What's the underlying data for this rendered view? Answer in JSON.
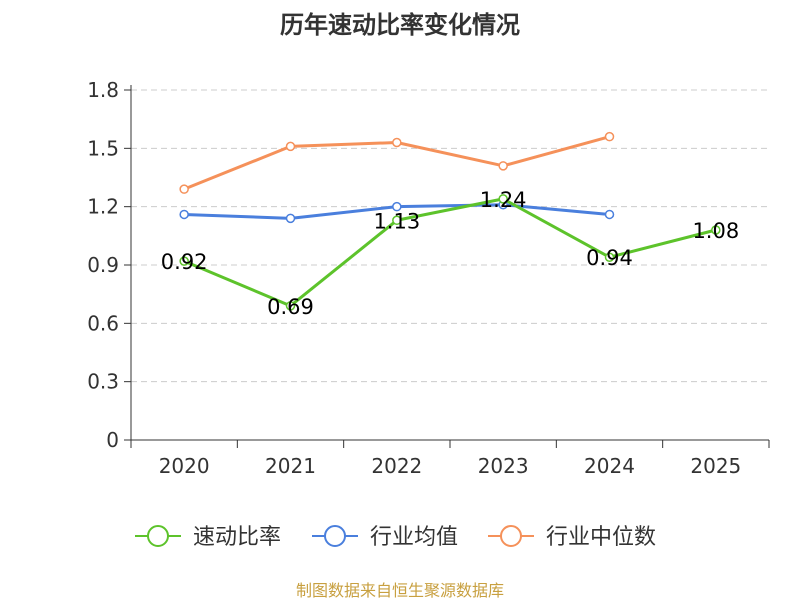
{
  "chart_data": {
    "type": "line",
    "title": "历年速动比率变化情况",
    "xlabel": "",
    "ylabel": "",
    "categories": [
      "2020",
      "2021",
      "2022",
      "2023",
      "2024",
      "2025"
    ],
    "ylim": [
      0,
      1.8
    ],
    "yticks": [
      "0",
      "0.3",
      "0.6",
      "0.9",
      "1.2",
      "1.5",
      "1.8"
    ],
    "grid": true,
    "legend_position": "bottom",
    "series": [
      {
        "name": "速动比率",
        "color": "#5dc32b",
        "values": [
          0.92,
          0.69,
          1.13,
          1.24,
          0.94,
          1.08
        ],
        "labels": [
          "0.92",
          "0.69",
          "1.13",
          "1.24",
          "0.94",
          "1.08"
        ]
      },
      {
        "name": "行业均值",
        "color": "#4a7fdd",
        "values": [
          1.16,
          1.14,
          1.2,
          1.21,
          1.16,
          null
        ]
      },
      {
        "name": "行业中位数",
        "color": "#f5915a",
        "values": [
          1.29,
          1.51,
          1.53,
          1.41,
          1.56,
          null
        ]
      }
    ],
    "source": "制图数据来自恒生聚源数据库"
  }
}
